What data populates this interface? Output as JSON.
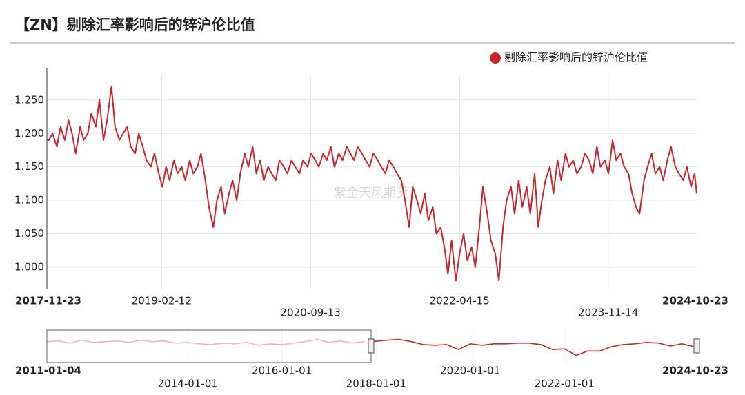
{
  "chart_data": [
    {
      "type": "line",
      "title": "【ZN】剔除汇率影响后的锌沪伦比值",
      "watermark": "紫金天风期货",
      "legend": "top-right",
      "grid": true,
      "xlim": [
        "2017-11-23",
        "2024-10-23"
      ],
      "xticks": [
        "2017-11-23",
        "2019-02-12",
        "2020-09-13",
        "2022-04-15",
        "2023-11-14",
        "2024-10-23"
      ],
      "ylim": [
        0.968,
        1.288
      ],
      "yticks": [
        {
          "value": 1.0,
          "label": "1.000"
        },
        {
          "value": 1.05,
          "label": "1.050"
        },
        {
          "value": 1.1,
          "label": "1.100"
        },
        {
          "value": 1.15,
          "label": "1.150"
        },
        {
          "value": 1.2,
          "label": "1.200"
        },
        {
          "value": 1.25,
          "label": "1.250"
        }
      ],
      "series": [
        {
          "name": "剔除汇率影响后的锌沪伦比值",
          "color": "#cc2229",
          "x": [
            "2017-11-23",
            "2017-12-01",
            "2017-12-15",
            "2018-01-01",
            "2018-01-15",
            "2018-02-01",
            "2018-02-15",
            "2018-03-01",
            "2018-03-15",
            "2018-04-01",
            "2018-04-15",
            "2018-05-01",
            "2018-05-15",
            "2018-06-01",
            "2018-06-15",
            "2018-07-01",
            "2018-07-15",
            "2018-08-01",
            "2018-08-15",
            "2018-09-01",
            "2018-09-15",
            "2018-10-01",
            "2018-10-15",
            "2018-11-01",
            "2018-11-15",
            "2018-12-01",
            "2018-12-15",
            "2019-01-01",
            "2019-01-15",
            "2019-02-01",
            "2019-02-15",
            "2019-03-01",
            "2019-03-15",
            "2019-04-01",
            "2019-04-15",
            "2019-05-01",
            "2019-05-15",
            "2019-06-01",
            "2019-06-15",
            "2019-07-01",
            "2019-07-15",
            "2019-08-01",
            "2019-08-15",
            "2019-09-01",
            "2019-09-15",
            "2019-10-01",
            "2019-10-15",
            "2019-11-01",
            "2019-11-15",
            "2019-12-01",
            "2019-12-15",
            "2020-01-01",
            "2020-01-15",
            "2020-02-01",
            "2020-02-15",
            "2020-03-01",
            "2020-03-15",
            "2020-04-01",
            "2020-04-15",
            "2020-05-01",
            "2020-05-15",
            "2020-06-01",
            "2020-06-15",
            "2020-07-01",
            "2020-07-15",
            "2020-08-01",
            "2020-08-15",
            "2020-09-01",
            "2020-09-15",
            "2020-10-01",
            "2020-10-15",
            "2020-11-01",
            "2020-11-15",
            "2020-12-01",
            "2020-12-15",
            "2021-01-01",
            "2021-01-15",
            "2021-02-01",
            "2021-02-15",
            "2021-03-01",
            "2021-03-15",
            "2021-04-01",
            "2021-04-15",
            "2021-05-01",
            "2021-05-15",
            "2021-06-01",
            "2021-06-15",
            "2021-07-01",
            "2021-07-15",
            "2021-08-01",
            "2021-08-15",
            "2021-09-01",
            "2021-09-15",
            "2021-10-01",
            "2021-10-15",
            "2021-11-01",
            "2021-11-15",
            "2021-12-01",
            "2021-12-15",
            "2022-01-01",
            "2022-01-15",
            "2022-02-01",
            "2022-02-15",
            "2022-03-01",
            "2022-03-15",
            "2022-04-01",
            "2022-04-15",
            "2022-05-01",
            "2022-05-15",
            "2022-06-01",
            "2022-06-15",
            "2022-07-01",
            "2022-07-15",
            "2022-08-01",
            "2022-08-15",
            "2022-09-01",
            "2022-09-15",
            "2022-10-01",
            "2022-10-15",
            "2022-11-01",
            "2022-11-15",
            "2022-12-01",
            "2022-12-15",
            "2023-01-01",
            "2023-01-15",
            "2023-02-01",
            "2023-02-15",
            "2023-03-01",
            "2023-03-15",
            "2023-04-01",
            "2023-04-15",
            "2023-05-01",
            "2023-05-15",
            "2023-06-01",
            "2023-06-15",
            "2023-07-01",
            "2023-07-15",
            "2023-08-01",
            "2023-08-15",
            "2023-09-01",
            "2023-09-15",
            "2023-10-01",
            "2023-10-15",
            "2023-11-01",
            "2023-11-15",
            "2023-12-01",
            "2023-12-15",
            "2024-01-01",
            "2024-01-15",
            "2024-02-01",
            "2024-02-15",
            "2024-03-01",
            "2024-03-15",
            "2024-04-01",
            "2024-04-15",
            "2024-05-01",
            "2024-05-15",
            "2024-06-01",
            "2024-06-15",
            "2024-07-01",
            "2024-07-15",
            "2024-08-01",
            "2024-08-15",
            "2024-09-01",
            "2024-09-15",
            "2024-10-01",
            "2024-10-15",
            "2024-10-23"
          ],
          "values": [
            1.19,
            1.19,
            1.2,
            1.18,
            1.21,
            1.19,
            1.22,
            1.2,
            1.17,
            1.21,
            1.19,
            1.2,
            1.23,
            1.21,
            1.25,
            1.19,
            1.22,
            1.27,
            1.21,
            1.19,
            1.2,
            1.21,
            1.18,
            1.17,
            1.2,
            1.18,
            1.16,
            1.15,
            1.17,
            1.14,
            1.12,
            1.15,
            1.13,
            1.16,
            1.14,
            1.15,
            1.13,
            1.16,
            1.14,
            1.15,
            1.17,
            1.13,
            1.09,
            1.06,
            1.1,
            1.12,
            1.08,
            1.11,
            1.13,
            1.1,
            1.14,
            1.17,
            1.15,
            1.18,
            1.14,
            1.16,
            1.13,
            1.15,
            1.14,
            1.13,
            1.16,
            1.15,
            1.14,
            1.16,
            1.15,
            1.14,
            1.16,
            1.15,
            1.17,
            1.16,
            1.15,
            1.17,
            1.16,
            1.18,
            1.15,
            1.17,
            1.16,
            1.18,
            1.17,
            1.16,
            1.18,
            1.17,
            1.16,
            1.15,
            1.17,
            1.16,
            1.15,
            1.14,
            1.16,
            1.15,
            1.14,
            1.13,
            1.1,
            1.06,
            1.12,
            1.1,
            1.08,
            1.11,
            1.07,
            1.09,
            1.05,
            1.06,
            1.03,
            0.99,
            1.04,
            0.98,
            1.02,
            1.05,
            1.01,
            1.03,
            1.0,
            1.06,
            1.12,
            1.08,
            1.04,
            1.02,
            0.98,
            1.06,
            1.1,
            1.12,
            1.08,
            1.13,
            1.09,
            1.12,
            1.08,
            1.14,
            1.06,
            1.1,
            1.13,
            1.15,
            1.11,
            1.16,
            1.13,
            1.17,
            1.15,
            1.16,
            1.14,
            1.15,
            1.17,
            1.16,
            1.14,
            1.18,
            1.15,
            1.16,
            1.14,
            1.19,
            1.16,
            1.17,
            1.15,
            1.14,
            1.11,
            1.09,
            1.08,
            1.13,
            1.15,
            1.17,
            1.14,
            1.15,
            1.13,
            1.16,
            1.18,
            1.15,
            1.14,
            1.13,
            1.15,
            1.12,
            1.14,
            1.11
          ]
        }
      ]
    },
    {
      "type": "navigator",
      "xlim": [
        "2011-01-04",
        "2024-10-23"
      ],
      "xticks": [
        "2011-01-04",
        "2014-01-01",
        "2016-01-01",
        "2018-01-01",
        "2020-01-01",
        "2022-01-01",
        "2024-10-23"
      ],
      "ylim": [
        0.9,
        1.35
      ],
      "series": [
        {
          "color": "#eeb0b2",
          "x": [
            "2011-01-04",
            "2011-04-01",
            "2011-07-01",
            "2011-10-01",
            "2012-01-01",
            "2012-04-01",
            "2012-07-01",
            "2012-10-01",
            "2013-01-01",
            "2013-04-01",
            "2013-07-01",
            "2013-10-01",
            "2014-01-01",
            "2014-04-01",
            "2014-07-01",
            "2014-10-01",
            "2015-01-01",
            "2015-04-01",
            "2015-07-01",
            "2015-10-01",
            "2016-01-01",
            "2016-04-01",
            "2016-07-01",
            "2016-10-01",
            "2017-01-01",
            "2017-04-01",
            "2017-07-01",
            "2017-10-01"
          ],
          "values": [
            1.19,
            1.2,
            1.17,
            1.21,
            1.18,
            1.19,
            1.2,
            1.18,
            1.21,
            1.19,
            1.2,
            1.17,
            1.18,
            1.16,
            1.15,
            1.17,
            1.16,
            1.18,
            1.14,
            1.16,
            1.15,
            1.17,
            1.19,
            1.22,
            1.18,
            1.2,
            1.17,
            1.19
          ]
        },
        {
          "color": "#cc2229",
          "x": [
            "2017-11-23",
            "2018-04-01",
            "2018-07-01",
            "2018-10-01",
            "2019-01-01",
            "2019-04-01",
            "2019-07-01",
            "2019-10-01",
            "2020-01-01",
            "2020-04-01",
            "2020-07-01",
            "2020-10-01",
            "2021-01-01",
            "2021-04-01",
            "2021-07-01",
            "2021-10-01",
            "2022-01-01",
            "2022-04-01",
            "2022-07-01",
            "2022-10-01",
            "2023-01-01",
            "2023-04-01",
            "2023-07-01",
            "2023-10-01",
            "2024-01-01",
            "2024-04-01",
            "2024-07-01",
            "2024-10-01",
            "2024-10-23"
          ],
          "values": [
            1.19,
            1.21,
            1.22,
            1.19,
            1.15,
            1.14,
            1.15,
            1.08,
            1.16,
            1.14,
            1.16,
            1.16,
            1.17,
            1.17,
            1.15,
            1.08,
            1.09,
            1.0,
            1.06,
            1.06,
            1.12,
            1.15,
            1.16,
            1.18,
            1.17,
            1.13,
            1.16,
            1.12,
            1.11
          ]
        }
      ]
    }
  ]
}
